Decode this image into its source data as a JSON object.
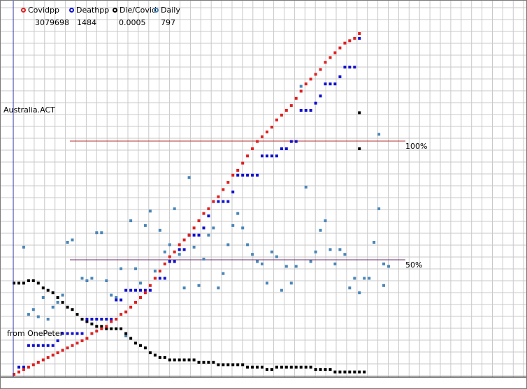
{
  "legend": [
    {
      "name": "Covidpp",
      "value": "3079698",
      "color": "#e02020"
    },
    {
      "name": "Deathpp",
      "value": "1484",
      "color": "#1010d0"
    },
    {
      "name": "Die/Covid",
      "value": "0.0005",
      "color": "#000000"
    },
    {
      "name": "Daily",
      "value": "797",
      "color": "#4a86b8"
    }
  ],
  "region_label": "Australia.ACT",
  "source_label": "from OnePeter",
  "ref_lines": [
    {
      "label": "100%",
      "level": 100,
      "color": "#b03030"
    },
    {
      "label": "50%",
      "level": 50,
      "color": "#6a2a6a"
    }
  ],
  "chart_data": {
    "type": "scatter",
    "x_range": [
      0,
      154
    ],
    "y_range": [
      0,
      142
    ],
    "grid": true,
    "series": [
      {
        "name": "Covidpp",
        "color": "#e02020",
        "points": [
          [
            0,
            0
          ],
          [
            2,
            1
          ],
          [
            4,
            2
          ],
          [
            6,
            3
          ],
          [
            8,
            4
          ],
          [
            10,
            5
          ],
          [
            12,
            6
          ],
          [
            14,
            7
          ],
          [
            16,
            8
          ],
          [
            18,
            9
          ],
          [
            20,
            10
          ],
          [
            22,
            11
          ],
          [
            24,
            12
          ],
          [
            26,
            13
          ],
          [
            28,
            14
          ],
          [
            30,
            15
          ],
          [
            32,
            17
          ],
          [
            34,
            18
          ],
          [
            36,
            19
          ],
          [
            38,
            20
          ],
          [
            40,
            22
          ],
          [
            42,
            23
          ],
          [
            44,
            25
          ],
          [
            46,
            26
          ],
          [
            48,
            28
          ],
          [
            50,
            30
          ],
          [
            52,
            32
          ],
          [
            54,
            34
          ],
          [
            56,
            37
          ],
          [
            58,
            40
          ],
          [
            60,
            43
          ],
          [
            62,
            46
          ],
          [
            64,
            49
          ],
          [
            66,
            51
          ],
          [
            68,
            54
          ],
          [
            70,
            56
          ],
          [
            72,
            58
          ],
          [
            74,
            61
          ],
          [
            76,
            64
          ],
          [
            78,
            67
          ],
          [
            80,
            69
          ],
          [
            82,
            72
          ],
          [
            84,
            74
          ],
          [
            86,
            77
          ],
          [
            88,
            80
          ],
          [
            90,
            83
          ],
          [
            92,
            85
          ],
          [
            94,
            88
          ],
          [
            96,
            91
          ],
          [
            98,
            94
          ],
          [
            100,
            97
          ],
          [
            102,
            99
          ],
          [
            104,
            101
          ],
          [
            106,
            103
          ],
          [
            108,
            106
          ],
          [
            110,
            108
          ],
          [
            112,
            110
          ],
          [
            114,
            112
          ],
          [
            116,
            115
          ],
          [
            118,
            118
          ],
          [
            120,
            121
          ],
          [
            122,
            123
          ],
          [
            124,
            125
          ],
          [
            126,
            127
          ],
          [
            128,
            130
          ],
          [
            130,
            132
          ],
          [
            132,
            134
          ],
          [
            134,
            136
          ],
          [
            136,
            138
          ],
          [
            138,
            139
          ],
          [
            140,
            140
          ],
          [
            142,
            142
          ]
        ]
      },
      {
        "name": "Deathpp",
        "color": "#1010d0",
        "points": [
          [
            2,
            3
          ],
          [
            4,
            3
          ],
          [
            6,
            12
          ],
          [
            8,
            12
          ],
          [
            10,
            12
          ],
          [
            12,
            12
          ],
          [
            14,
            12
          ],
          [
            16,
            12
          ],
          [
            18,
            14
          ],
          [
            20,
            17
          ],
          [
            22,
            17
          ],
          [
            24,
            17
          ],
          [
            26,
            17
          ],
          [
            28,
            17
          ],
          [
            30,
            23
          ],
          [
            32,
            23
          ],
          [
            34,
            23
          ],
          [
            36,
            23
          ],
          [
            38,
            23
          ],
          [
            40,
            23
          ],
          [
            42,
            31
          ],
          [
            44,
            31
          ],
          [
            46,
            35
          ],
          [
            48,
            35
          ],
          [
            50,
            35
          ],
          [
            52,
            35
          ],
          [
            54,
            35
          ],
          [
            56,
            35
          ],
          [
            58,
            40
          ],
          [
            60,
            40
          ],
          [
            62,
            40
          ],
          [
            64,
            47
          ],
          [
            66,
            47
          ],
          [
            68,
            52
          ],
          [
            70,
            52
          ],
          [
            72,
            58
          ],
          [
            74,
            58
          ],
          [
            76,
            58
          ],
          [
            78,
            61
          ],
          [
            80,
            66
          ],
          [
            82,
            72
          ],
          [
            84,
            72
          ],
          [
            86,
            72
          ],
          [
            88,
            72
          ],
          [
            90,
            76
          ],
          [
            92,
            83
          ],
          [
            94,
            83
          ],
          [
            96,
            83
          ],
          [
            98,
            83
          ],
          [
            100,
            83
          ],
          [
            102,
            91
          ],
          [
            104,
            91
          ],
          [
            106,
            91
          ],
          [
            108,
            91
          ],
          [
            110,
            94
          ],
          [
            112,
            94
          ],
          [
            114,
            97
          ],
          [
            116,
            97
          ],
          [
            118,
            110
          ],
          [
            120,
            110
          ],
          [
            122,
            110
          ],
          [
            124,
            113
          ],
          [
            126,
            116
          ],
          [
            128,
            121
          ],
          [
            130,
            121
          ],
          [
            132,
            121
          ],
          [
            134,
            124
          ],
          [
            136,
            128
          ],
          [
            138,
            128
          ],
          [
            140,
            128
          ],
          [
            142,
            140
          ]
        ]
      },
      {
        "name": "Die/Covid",
        "color": "#000000",
        "points": [
          [
            0,
            38
          ],
          [
            2,
            38
          ],
          [
            4,
            38
          ],
          [
            6,
            39
          ],
          [
            8,
            39
          ],
          [
            10,
            38
          ],
          [
            12,
            36
          ],
          [
            14,
            35
          ],
          [
            16,
            34
          ],
          [
            18,
            32
          ],
          [
            20,
            30
          ],
          [
            22,
            28
          ],
          [
            24,
            27
          ],
          [
            26,
            25
          ],
          [
            28,
            23
          ],
          [
            30,
            22
          ],
          [
            32,
            21
          ],
          [
            34,
            20
          ],
          [
            36,
            20
          ],
          [
            38,
            19
          ],
          [
            40,
            19
          ],
          [
            42,
            19
          ],
          [
            44,
            19
          ],
          [
            46,
            17
          ],
          [
            48,
            15
          ],
          [
            50,
            13
          ],
          [
            52,
            12
          ],
          [
            54,
            11
          ],
          [
            56,
            9
          ],
          [
            58,
            8
          ],
          [
            60,
            7
          ],
          [
            62,
            7
          ],
          [
            64,
            6
          ],
          [
            66,
            6
          ],
          [
            68,
            6
          ],
          [
            70,
            6
          ],
          [
            72,
            6
          ],
          [
            74,
            6
          ],
          [
            76,
            5
          ],
          [
            78,
            5
          ],
          [
            80,
            5
          ],
          [
            82,
            5
          ],
          [
            84,
            4
          ],
          [
            86,
            4
          ],
          [
            88,
            4
          ],
          [
            90,
            4
          ],
          [
            92,
            4
          ],
          [
            94,
            4
          ],
          [
            96,
            3
          ],
          [
            98,
            3
          ],
          [
            100,
            3
          ],
          [
            102,
            3
          ],
          [
            104,
            2
          ],
          [
            106,
            2
          ],
          [
            108,
            3
          ],
          [
            110,
            3
          ],
          [
            112,
            3
          ],
          [
            114,
            3
          ],
          [
            116,
            3
          ],
          [
            118,
            3
          ],
          [
            120,
            3
          ],
          [
            122,
            3
          ],
          [
            124,
            2
          ],
          [
            126,
            2
          ],
          [
            128,
            2
          ],
          [
            130,
            2
          ],
          [
            132,
            1
          ],
          [
            134,
            1
          ],
          [
            136,
            1
          ],
          [
            138,
            1
          ],
          [
            140,
            1
          ],
          [
            142,
            1
          ],
          [
            144,
            1
          ],
          [
            142,
            109
          ],
          [
            142,
            94
          ]
        ]
      },
      {
        "name": "Daily",
        "color": "#4a86b8",
        "points": [
          [
            4,
            53
          ],
          [
            6,
            25
          ],
          [
            8,
            27
          ],
          [
            10,
            24
          ],
          [
            12,
            32
          ],
          [
            14,
            23
          ],
          [
            16,
            28
          ],
          [
            18,
            30
          ],
          [
            20,
            33
          ],
          [
            22,
            55
          ],
          [
            24,
            56
          ],
          [
            28,
            40
          ],
          [
            30,
            39
          ],
          [
            32,
            40
          ],
          [
            34,
            59
          ],
          [
            36,
            59
          ],
          [
            38,
            39
          ],
          [
            40,
            33
          ],
          [
            42,
            32
          ],
          [
            44,
            44
          ],
          [
            46,
            16
          ],
          [
            48,
            64
          ],
          [
            50,
            44
          ],
          [
            52,
            38
          ],
          [
            54,
            62
          ],
          [
            56,
            68
          ],
          [
            58,
            43
          ],
          [
            60,
            60
          ],
          [
            62,
            51
          ],
          [
            64,
            54
          ],
          [
            66,
            69
          ],
          [
            68,
            50
          ],
          [
            70,
            36
          ],
          [
            72,
            82
          ],
          [
            74,
            53
          ],
          [
            76,
            37
          ],
          [
            78,
            48
          ],
          [
            80,
            58
          ],
          [
            82,
            61
          ],
          [
            84,
            36
          ],
          [
            86,
            42
          ],
          [
            88,
            54
          ],
          [
            90,
            62
          ],
          [
            92,
            67
          ],
          [
            94,
            61
          ],
          [
            96,
            54
          ],
          [
            98,
            50
          ],
          [
            100,
            47
          ],
          [
            102,
            46
          ],
          [
            104,
            38
          ],
          [
            106,
            51
          ],
          [
            108,
            49
          ],
          [
            110,
            35
          ],
          [
            112,
            45
          ],
          [
            114,
            38
          ],
          [
            116,
            45
          ],
          [
            118,
            120
          ],
          [
            120,
            78
          ],
          [
            122,
            47
          ],
          [
            124,
            51
          ],
          [
            126,
            60
          ],
          [
            128,
            64
          ],
          [
            130,
            52
          ],
          [
            132,
            46
          ],
          [
            134,
            52
          ],
          [
            136,
            50
          ],
          [
            138,
            36
          ],
          [
            140,
            40
          ],
          [
            142,
            34
          ],
          [
            144,
            40
          ],
          [
            146,
            40
          ],
          [
            148,
            55
          ],
          [
            150,
            69
          ],
          [
            152,
            46
          ],
          [
            154,
            45
          ],
          [
            152,
            37
          ],
          [
            150,
            100
          ]
        ]
      }
    ]
  }
}
